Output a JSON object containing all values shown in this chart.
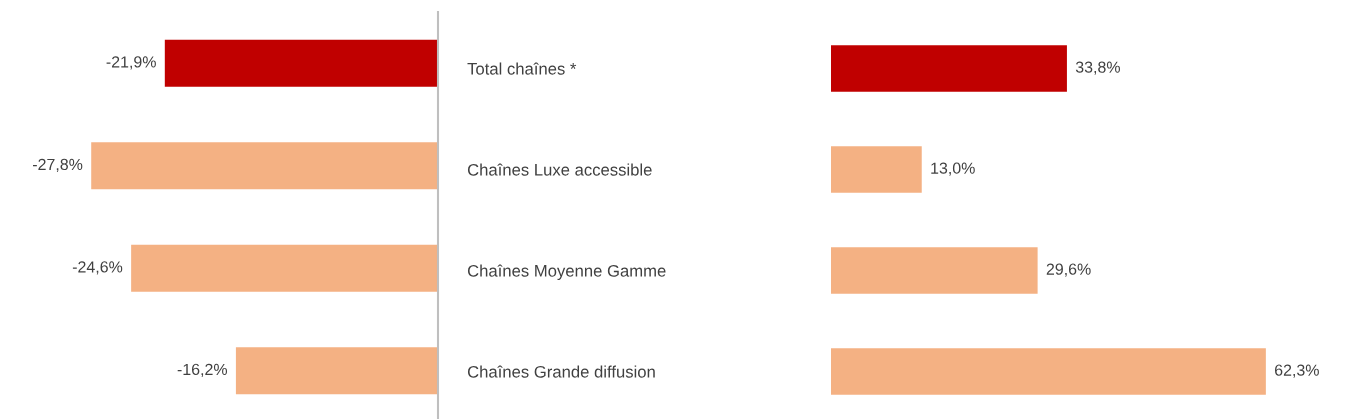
{
  "chart_data": [
    {
      "type": "bar",
      "orientation": "horizontal",
      "categories": [
        null,
        null,
        null,
        null
      ],
      "values": [
        -21.9,
        -27.8,
        -24.6,
        -16.2
      ],
      "colors": [
        "#c00000",
        "#f4b183",
        "#f4b183",
        "#f4b183"
      ],
      "value_labels": [
        "-21,9%",
        "-27,8%",
        "-24,6%",
        "-16,2%"
      ],
      "tick_labels": false
    },
    {
      "type": "bar",
      "orientation": "horizontal",
      "categories": [
        "Total chaînes *",
        "Chaînes Luxe accessible",
        "Chaînes Moyenne Gamme",
        "Chaînes Grande diffusion"
      ],
      "values": [
        33.8,
        13.0,
        29.6,
        62.3
      ],
      "colors": [
        "#c00000",
        "#f4b183",
        "#f4b183",
        "#f4b183"
      ],
      "value_labels": [
        "33,8%",
        "13,0%",
        "29,6%",
        "62,3%"
      ],
      "tick_labels": "y"
    }
  ]
}
